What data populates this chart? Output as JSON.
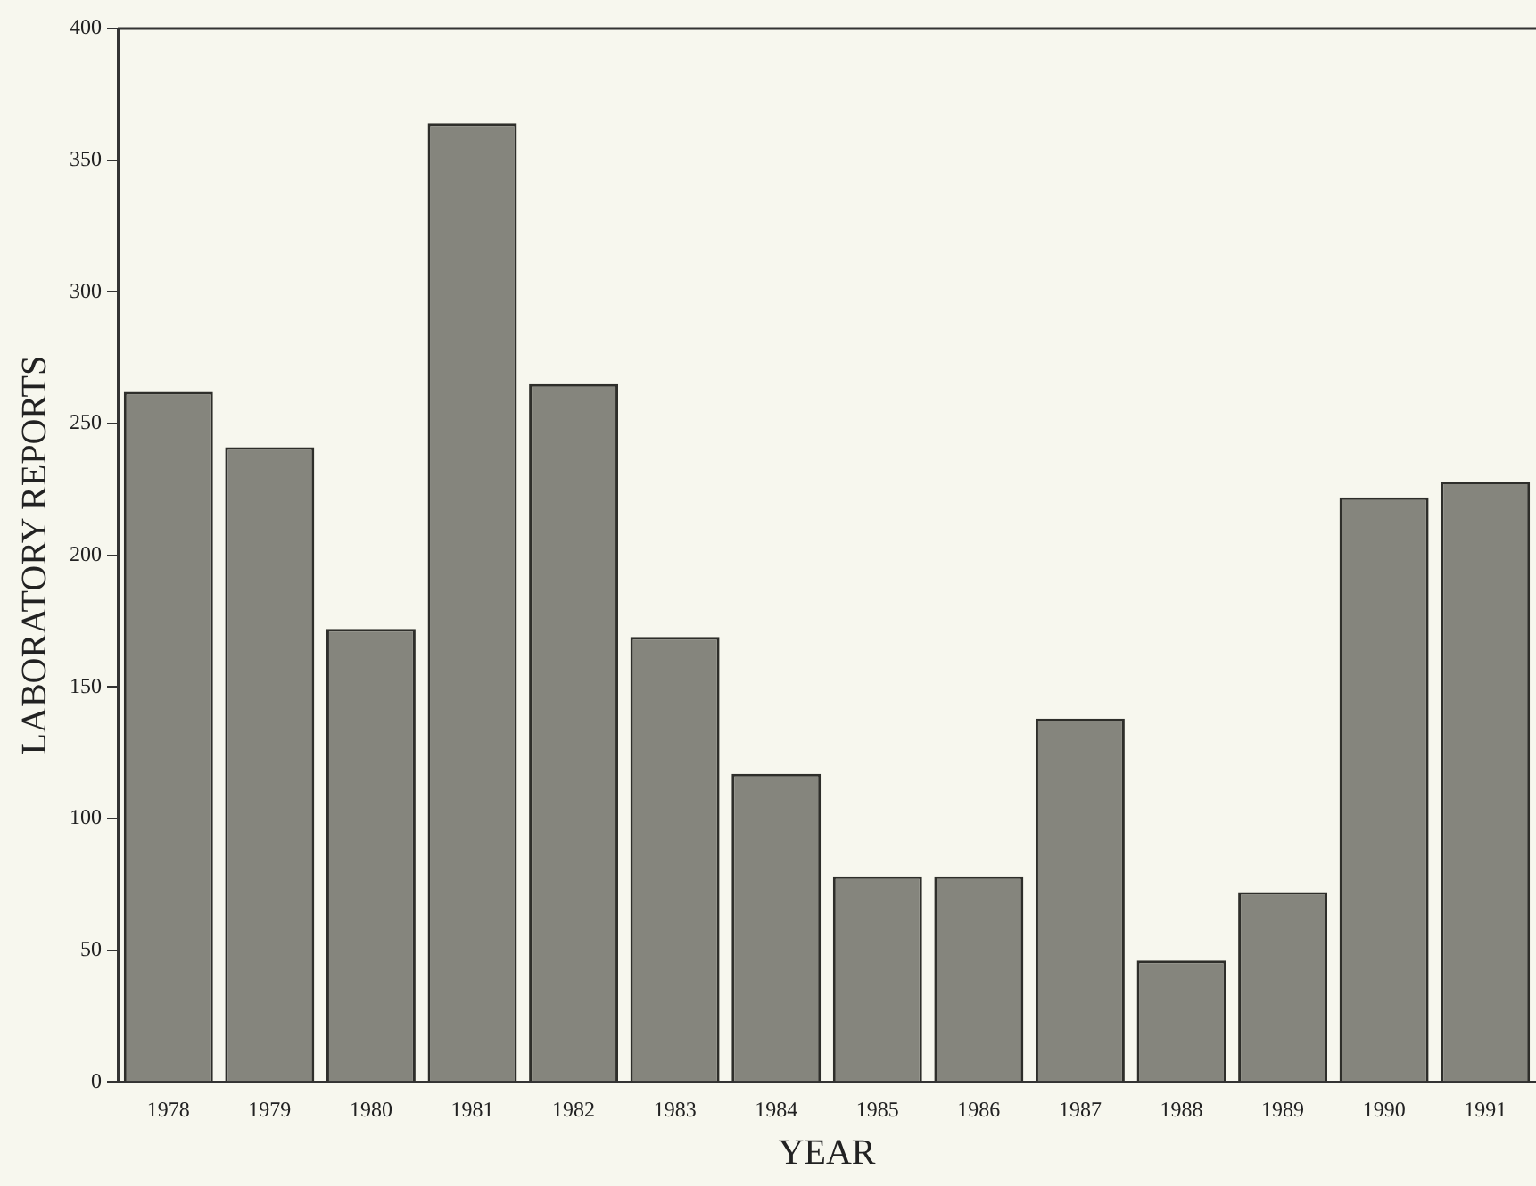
{
  "chart_data": {
    "type": "bar",
    "xlabel": "YEAR",
    "ylabel": "LABORATORY REPORTS",
    "categories": [
      "1978",
      "1979",
      "1980",
      "1981",
      "1982",
      "1983",
      "1984",
      "1985",
      "1986",
      "1987",
      "1988",
      "1989",
      "1990",
      "1991"
    ],
    "values": [
      262,
      241,
      172,
      364,
      265,
      169,
      117,
      78,
      78,
      138,
      46,
      72,
      222,
      228
    ],
    "color": "#85857d",
    "ylim": [
      0,
      400
    ],
    "yticks": [
      0,
      50,
      100,
      150,
      200,
      250,
      300,
      350,
      400
    ],
    "grid": false,
    "legend": false
  }
}
